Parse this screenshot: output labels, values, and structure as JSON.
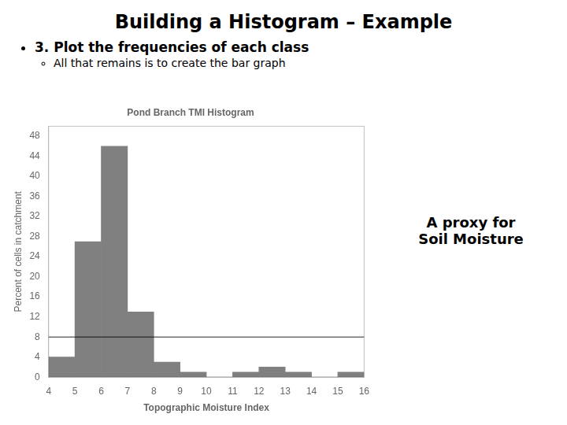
{
  "title": "Building a Histogram – Example",
  "bullets": [
    {
      "text": "3. Plot the frequencies of each class",
      "items": [
        "All that remains is to create the bar graph"
      ]
    }
  ],
  "chart_data": {
    "type": "histogram",
    "title": "Pond Branch TMI Histogram",
    "x_label": "Topographic Moisture Index",
    "y_label": "Percent of cells in catchment",
    "bins": [
      4,
      5,
      6,
      7,
      8,
      9,
      10,
      11,
      12,
      13,
      14,
      15,
      16
    ],
    "values": [
      4,
      27,
      46,
      13,
      3,
      1,
      0,
      1,
      2,
      1,
      0,
      1
    ],
    "color": "#808080",
    "xlim": [
      4,
      16
    ],
    "xticks": [
      4,
      5,
      6,
      7,
      8,
      9,
      10,
      11,
      12,
      13,
      14,
      15,
      16
    ],
    "ylim": [
      0,
      50
    ],
    "yticks": [
      0,
      4,
      8,
      12,
      16,
      20,
      24,
      28,
      32,
      36,
      40,
      44,
      48
    ],
    "grid": false,
    "hline_y": 8,
    "annotations": [
      "A proxy for\nSoil Moisture"
    ]
  }
}
